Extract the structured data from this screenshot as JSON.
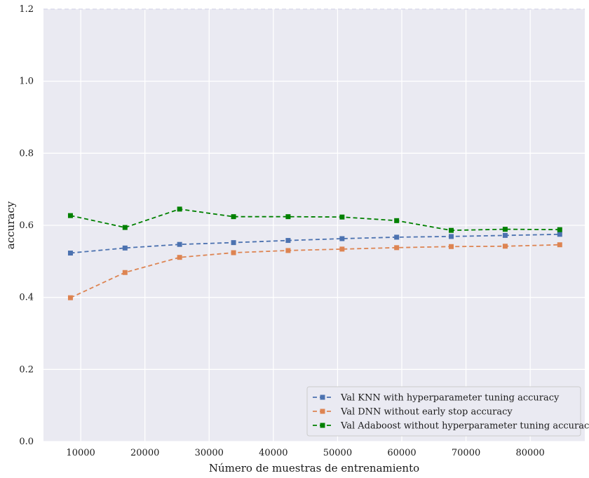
{
  "chart_data": {
    "type": "line",
    "title": "",
    "xlabel": "Número de muestras de entrenamiento",
    "ylabel": "accuracy",
    "xlim": [
      4200,
      88500
    ],
    "ylim": [
      0.0,
      1.2
    ],
    "xticks": [
      10000,
      20000,
      30000,
      40000,
      50000,
      60000,
      70000,
      80000
    ],
    "yticks": [
      0.0,
      0.2,
      0.4,
      0.6,
      0.8,
      1.0,
      1.2
    ],
    "ytick_labels": [
      "0.0",
      "0.2",
      "0.4",
      "0.6",
      "0.8",
      "1.0",
      "1.2"
    ],
    "grid": true,
    "legend_position": "lower-right",
    "x": [
      8400,
      16900,
      25400,
      33800,
      42300,
      50700,
      59200,
      67700,
      76100,
      84600
    ],
    "series": [
      {
        "name": "Val KNN with hyperparameter tuning accuracy",
        "color": "#4c72b0",
        "values": [
          0.523,
          0.537,
          0.547,
          0.552,
          0.558,
          0.563,
          0.567,
          0.569,
          0.572,
          0.575
        ]
      },
      {
        "name": "Val DNN without early stop accuracy",
        "color": "#dd8452",
        "values": [
          0.399,
          0.469,
          0.511,
          0.524,
          0.53,
          0.534,
          0.538,
          0.541,
          0.542,
          0.546
        ]
      },
      {
        "name": "Val Adaboost without hyperparameter tuning accuracy",
        "color": "#008000",
        "values": [
          0.627,
          0.594,
          0.645,
          0.624,
          0.624,
          0.623,
          0.613,
          0.586,
          0.589,
          0.588
        ]
      }
    ]
  }
}
